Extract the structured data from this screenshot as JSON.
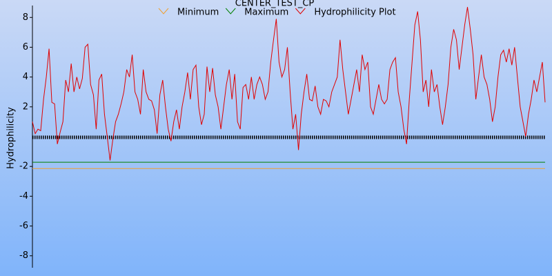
{
  "chart_data": {
    "type": "line",
    "title": "CENTER_TEST_CP",
    "y_label": "Hydrophilicity",
    "ylim": [
      -8.8,
      8.8
    ],
    "yticks": [
      8,
      6,
      4,
      2,
      -2,
      -4,
      -6,
      -8
    ],
    "series": [
      {
        "name": "Minimum",
        "color": "#f0a030",
        "values": [
          -2.14
        ]
      },
      {
        "name": "Maximum",
        "color": "#008000",
        "values": [
          -1.72
        ]
      },
      {
        "name": "Hydrophilicity Plot",
        "color": "#e00000",
        "values": [
          1.0,
          0.2,
          0.5,
          0.4,
          2.5,
          4.0,
          5.9,
          2.3,
          2.2,
          -0.5,
          0.3,
          1.0,
          3.8,
          3.0,
          4.9,
          3.0,
          4.0,
          3.2,
          3.9,
          6.0,
          6.2,
          3.5,
          2.8,
          0.5,
          3.8,
          4.2,
          1.5,
          0.0,
          -1.6,
          -0.2,
          1.0,
          1.5,
          2.2,
          3.0,
          4.5,
          4.0,
          5.5,
          3.0,
          2.5,
          1.5,
          4.5,
          3.0,
          2.5,
          2.4,
          1.8,
          0.2,
          2.8,
          3.8,
          2.0,
          0.5,
          -0.3,
          1.0,
          1.8,
          0.5,
          2.0,
          3.0,
          4.3,
          2.5,
          4.5,
          4.8,
          2.0,
          0.8,
          1.5,
          4.7,
          3.0,
          4.6,
          2.8,
          2.0,
          0.5,
          2.0,
          3.5,
          4.5,
          2.5,
          4.2,
          1.0,
          0.5,
          3.3,
          3.5,
          2.5,
          4.0,
          2.5,
          3.5,
          4.0,
          3.5,
          2.5,
          3.0,
          5.0,
          6.5,
          7.9,
          5.0,
          4.0,
          4.5,
          6.0,
          3.0,
          0.5,
          1.5,
          -0.9,
          1.5,
          3.0,
          4.2,
          2.5,
          2.4,
          3.4,
          2.0,
          1.5,
          2.5,
          2.4,
          2.0,
          3.0,
          3.5,
          4.0,
          6.5,
          4.5,
          3.0,
          1.5,
          2.5,
          3.5,
          4.5,
          3.0,
          5.5,
          4.5,
          5.0,
          2.0,
          1.5,
          2.5,
          3.5,
          2.5,
          2.2,
          2.5,
          4.5,
          5.0,
          5.3,
          3.0,
          2.0,
          0.5,
          -0.5,
          2.5,
          5.0,
          7.5,
          8.4,
          6.5,
          3.0,
          3.8,
          2.0,
          4.5,
          3.0,
          3.5,
          2.0,
          0.8,
          2.0,
          3.5,
          6.0,
          7.2,
          6.5,
          4.5,
          6.0,
          7.5,
          8.7,
          7.2,
          5.5,
          2.5,
          4.0,
          5.5,
          4.0,
          3.5,
          2.5,
          1.0,
          2.0,
          4.0,
          5.5,
          5.8,
          5.0,
          5.9,
          4.8,
          6.0,
          4.0,
          2.0,
          1.0,
          0.0,
          1.5,
          2.5,
          3.8,
          3.0,
          4.0,
          5.0,
          2.3
        ]
      }
    ]
  }
}
